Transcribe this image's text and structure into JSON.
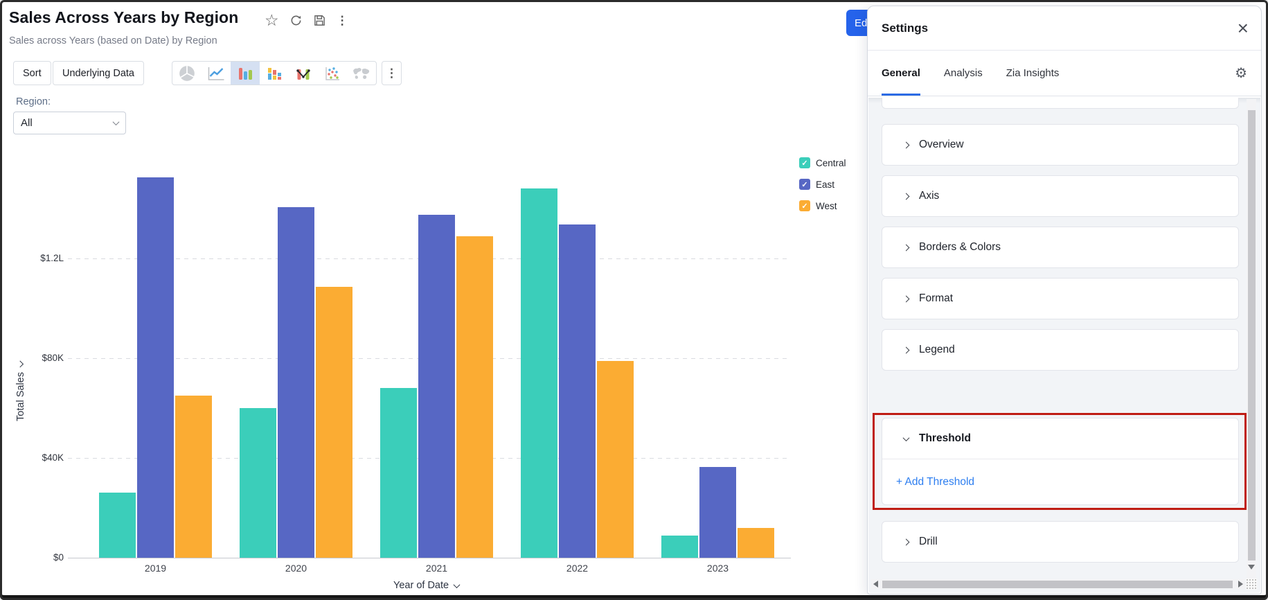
{
  "page": {
    "edit_button_label": "Edit"
  },
  "header": {
    "title": "Sales Across Years by Region",
    "subtitle": "Sales across Years (based on Date) by Region",
    "action_icons": [
      "star",
      "refresh",
      "save",
      "kebab-menu"
    ]
  },
  "toolbar": {
    "sort_label": "Sort",
    "underlying_data_label": "Underlying Data",
    "chart_types": [
      "pie-chart",
      "line-chart",
      "bar-chart",
      "stacked-bar-chart",
      "combo-chart",
      "scatter-plot",
      "map-chart"
    ],
    "selected_chart_type": "bar-chart",
    "more_icon": "kebab-menu"
  },
  "filter": {
    "label": "Region:",
    "value": "All"
  },
  "chart_data": {
    "type": "bar",
    "title": "Sales Across Years by Region",
    "categories": [
      "2019",
      "2020",
      "2021",
      "2022",
      "2023"
    ],
    "series": [
      {
        "name": "Central",
        "color": "#3bceba",
        "values": [
          26000,
          60000,
          68000,
          148000,
          9000
        ]
      },
      {
        "name": "East",
        "color": "#5767c4",
        "values": [
          152500,
          140500,
          137500,
          133500,
          36500
        ]
      },
      {
        "name": "West",
        "color": "#fbac33",
        "values": [
          65000,
          108500,
          129000,
          79000,
          12000
        ]
      }
    ],
    "xlabel": "Year of Date",
    "ylabel": "Total Sales",
    "yticks": [
      {
        "value": 0,
        "label": "$0"
      },
      {
        "value": 40000,
        "label": "$40K"
      },
      {
        "value": 80000,
        "label": "$80K"
      },
      {
        "value": 120000,
        "label": "$1.2L"
      }
    ],
    "ylim": [
      0,
      160000
    ],
    "grid": "dashed-horizontal",
    "legend_position": "right",
    "legend_checked": true
  },
  "settings_panel": {
    "title": "Settings",
    "close_icon": "close",
    "gear_icon": "gear",
    "accent_color": "#2b6be4",
    "highlight_color": "#bf1c13",
    "tabs": [
      {
        "label": "General",
        "active": true
      },
      {
        "label": "Analysis",
        "active": false
      },
      {
        "label": "Zia Insights",
        "active": false
      }
    ],
    "sections": [
      {
        "label": "Overview",
        "expanded": false
      },
      {
        "label": "Axis",
        "expanded": false
      },
      {
        "label": "Borders & Colors",
        "expanded": false
      },
      {
        "label": "Format",
        "expanded": false
      },
      {
        "label": "Legend",
        "expanded": false
      },
      {
        "label": "Threshold",
        "expanded": true,
        "highlighted": true,
        "action_label": "+ Add Threshold"
      },
      {
        "label": "Drill",
        "expanded": false
      }
    ]
  }
}
